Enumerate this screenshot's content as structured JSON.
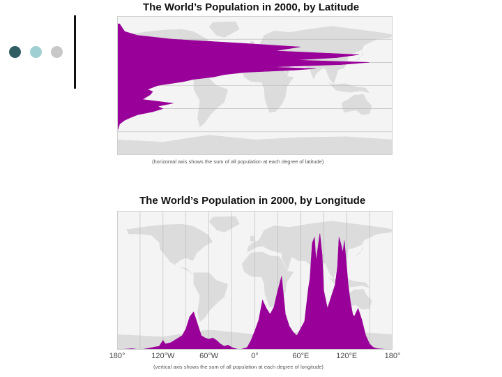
{
  "colors": {
    "accent_dark": "#2f5f63",
    "accent_light": "#9fcfd3",
    "accent_gray": "#c8c8c8",
    "population": "#990099",
    "land": "#dcdcdc",
    "ocean": "#f4f4f4"
  },
  "slide": {
    "decor_icons": [
      "dot-dark",
      "dot-light",
      "dot-gray"
    ]
  },
  "chart_data": [
    {
      "type": "area",
      "title": "The World’s Population in 2000, by Latitude",
      "note": "(horizontal axis shows the sum of all population at each degree of latitude)",
      "orientation": "horizontal",
      "xlabel": "",
      "ylabel": "",
      "ylim": [
        -90,
        90
      ],
      "grid": true,
      "series": [
        {
          "x": [
            80,
            70,
            65,
            60,
            55,
            50,
            45,
            40,
            36,
            33,
            30,
            27,
            24,
            22,
            20,
            17,
            14,
            11,
            8,
            5,
            2,
            0,
            -5,
            -8,
            -12,
            -18,
            -23,
            -27,
            -30,
            -34,
            -38,
            -42,
            -45,
            -50,
            -60,
            -90
          ],
          "values": [
            0.01,
            0.03,
            0.08,
            0.22,
            0.48,
            0.72,
            0.62,
            0.95,
            0.86,
            0.7,
            0.99,
            0.88,
            0.6,
            0.78,
            0.7,
            0.5,
            0.42,
            0.38,
            0.3,
            0.26,
            0.2,
            0.16,
            0.12,
            0.14,
            0.13,
            0.1,
            0.22,
            0.16,
            0.18,
            0.14,
            0.08,
            0.05,
            0.03,
            0.01,
            0.0,
            0.0
          ]
        }
      ]
    },
    {
      "type": "area",
      "title": "The World’s Population in 2000, by Longitude",
      "note": "(vertical axis shows the sum of all population at each degree of longitude)",
      "xlabel": "",
      "ylabel": "",
      "xlim": [
        -180,
        180
      ],
      "categories": [
        "180°",
        "120°W",
        "60°W",
        "0°",
        "60°E",
        "120°E",
        "180°"
      ],
      "tick_values": [
        -180,
        -120,
        -60,
        0,
        60,
        120,
        180
      ],
      "grid": true,
      "series": [
        {
          "x": [
            -180,
            -160,
            -150,
            -125,
            -120,
            -117,
            -110,
            -100,
            -95,
            -90,
            -85,
            -80,
            -75,
            -70,
            -65,
            -60,
            -55,
            -50,
            -45,
            -40,
            -35,
            -30,
            -20,
            -10,
            -5,
            0,
            5,
            10,
            15,
            20,
            25,
            30,
            35,
            40,
            45,
            50,
            55,
            60,
            65,
            70,
            72,
            75,
            78,
            80,
            85,
            88,
            90,
            95,
            100,
            105,
            108,
            110,
            113,
            115,
            117,
            120,
            122,
            125,
            128,
            130,
            135,
            140,
            145,
            150,
            155,
            160,
            170,
            180
          ],
          "values": [
            0.0,
            0.01,
            0.0,
            0.03,
            0.08,
            0.05,
            0.06,
            0.1,
            0.12,
            0.18,
            0.28,
            0.32,
            0.22,
            0.12,
            0.1,
            0.09,
            0.1,
            0.08,
            0.05,
            0.03,
            0.04,
            0.02,
            0.0,
            0.02,
            0.08,
            0.16,
            0.25,
            0.42,
            0.35,
            0.3,
            0.36,
            0.5,
            0.62,
            0.3,
            0.2,
            0.15,
            0.12,
            0.18,
            0.24,
            0.52,
            0.6,
            0.9,
            0.95,
            0.75,
            0.98,
            0.8,
            0.5,
            0.35,
            0.45,
            0.55,
            0.7,
            0.95,
            0.88,
            0.82,
            0.92,
            0.7,
            0.55,
            0.4,
            0.3,
            0.28,
            0.35,
            0.25,
            0.12,
            0.05,
            0.02,
            0.01,
            0.005,
            0.0
          ]
        }
      ]
    }
  ]
}
